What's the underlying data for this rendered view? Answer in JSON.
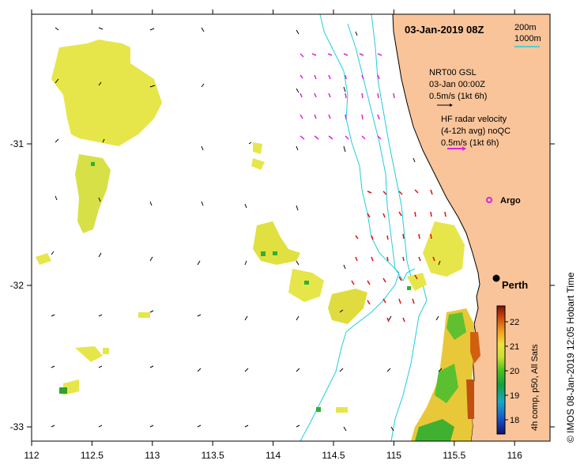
{
  "title": "03-Jan-2019 08Z",
  "depth_legend": [
    "200m",
    "1000m"
  ],
  "colors": {
    "land": "#f9c49a",
    "isobath": "#22ccdd",
    "sst_yellow": "#e6e64a",
    "magenta_vectors": "#e020e0",
    "red_vectors": "#e01010",
    "black_vectors": "#000000"
  },
  "legend": {
    "model_line1": "NRT00 GSL",
    "model_line2": "03-Jan 00:00Z",
    "model_scale": "0.5m/s (1kt 6h)",
    "radar_line1": "HF radar velocity",
    "radar_line2": "(4-12h avg) noQC",
    "radar_scale": "0.5m/s (1kt 6h)",
    "argo_label": "Argo"
  },
  "places": {
    "perth": "Perth"
  },
  "colorbar": {
    "ticks": [
      "22",
      "21",
      "20",
      "19",
      "18"
    ],
    "label": "4h comp, p50, All Sats",
    "range": [
      17.5,
      22.5
    ]
  },
  "credit": "© IMOS 08-Jan-2019 12:05 Hobart Time",
  "axes": {
    "x_ticks": [
      "112",
      "112.5",
      "113",
      "113.5",
      "114",
      "114.5",
      "115",
      "115.5",
      "116"
    ],
    "y_ticks": [
      "-31",
      "-32",
      "-33"
    ],
    "x_range": [
      112,
      116.3
    ],
    "y_range": [
      -33.1,
      -30.1
    ]
  }
}
